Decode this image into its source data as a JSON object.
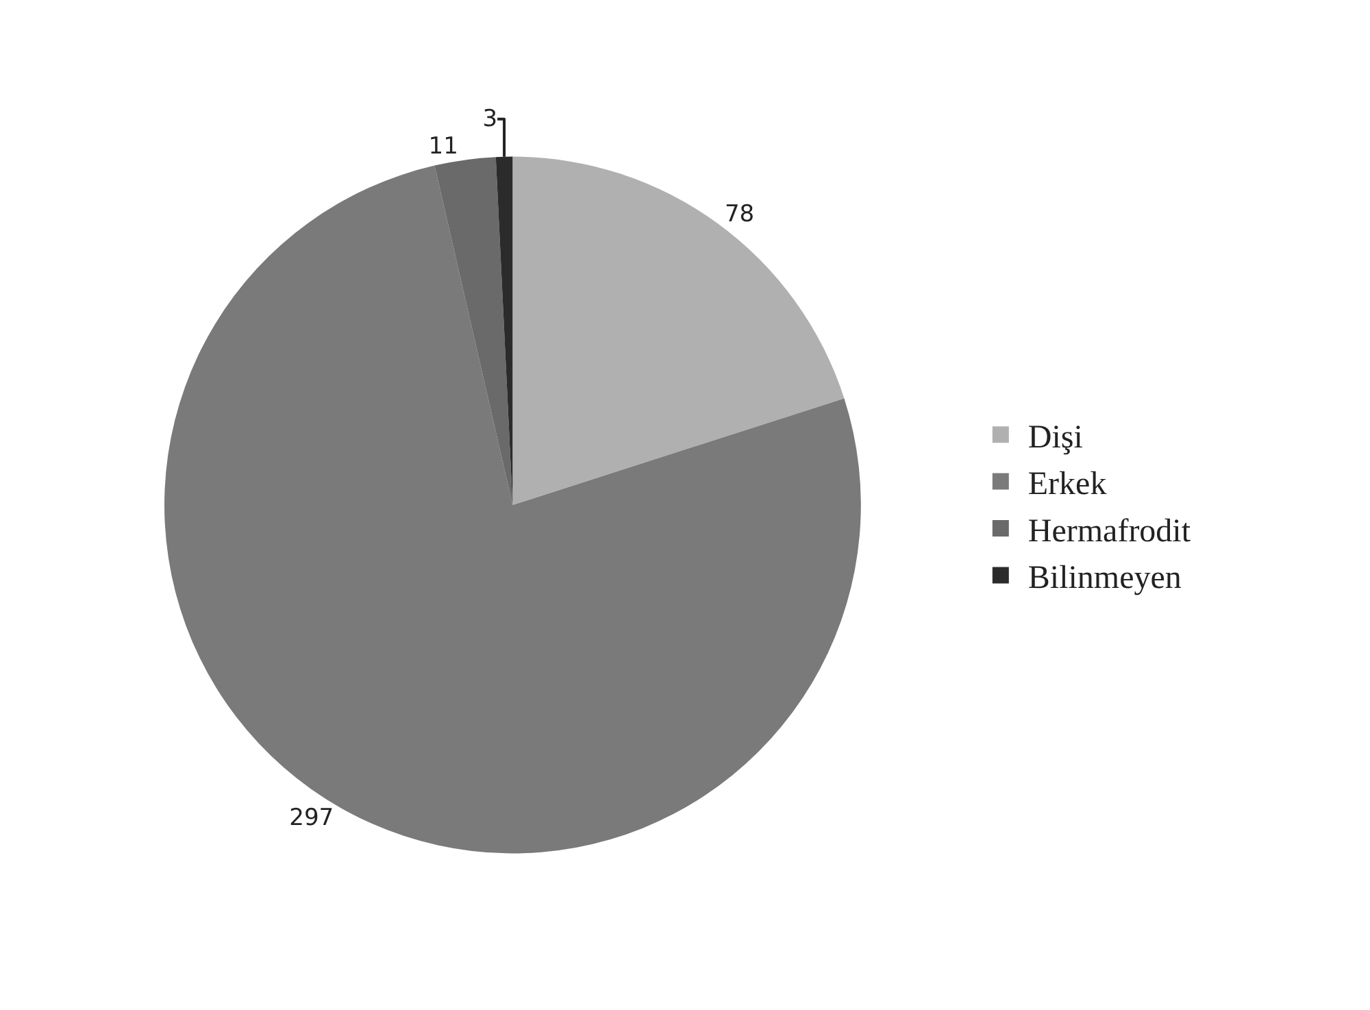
{
  "chart_data": {
    "type": "pie",
    "categories": [
      "Dişi",
      "Erkek",
      "Hermafrodit",
      "Bilinmeyen"
    ],
    "values": [
      78,
      297,
      11,
      3
    ],
    "colors": [
      "#b0b0b0",
      "#7a7a7a",
      "#6a6a6a",
      "#2b2b2b"
    ],
    "data_labels": true,
    "legend": "right"
  }
}
